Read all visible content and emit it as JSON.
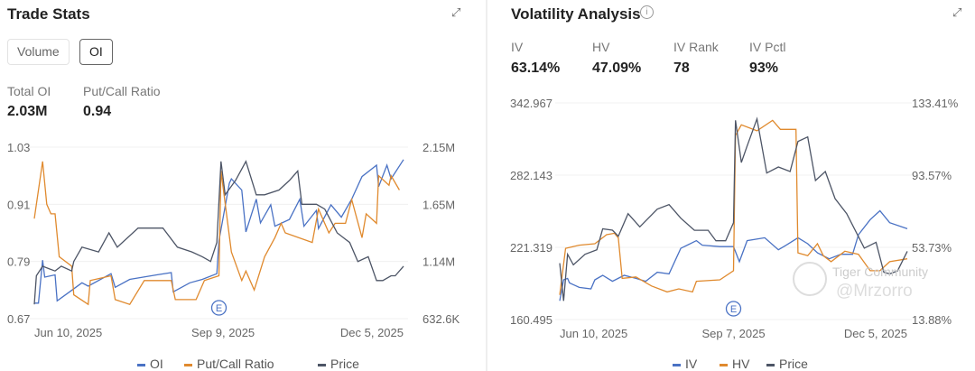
{
  "trade_stats": {
    "title": "Trade Stats",
    "tabs": [
      {
        "label": "Volume",
        "active": false
      },
      {
        "label": "OI",
        "active": true
      }
    ],
    "metrics": [
      {
        "label": "Total OI",
        "value": "2.03M"
      },
      {
        "label": "Put/Call Ratio",
        "value": "0.94"
      }
    ],
    "expand_icon": "expand-icon"
  },
  "volatility": {
    "title": "Volatility Analysis",
    "info_icon": "info-icon",
    "metrics": [
      {
        "label": "IV",
        "value": "63.14%"
      },
      {
        "label": "HV",
        "value": "47.09%"
      },
      {
        "label": "IV Rank",
        "value": "78"
      },
      {
        "label": "IV Pctl",
        "value": "93%"
      }
    ]
  },
  "watermark": {
    "brand": "Tiger Community",
    "user": "@Mrzorro"
  },
  "chart_data": [
    {
      "type": "line",
      "title": "Trade Stats",
      "x_unit": "days since Jun 10, 2025",
      "xlim": [
        0,
        178
      ],
      "x_ticks": [
        {
          "day": 0,
          "label": "Jun 10, 2025"
        },
        {
          "day": 91,
          "label": "Sep 9, 2025"
        },
        {
          "day": 178,
          "label": "Dec 5, 2025"
        }
      ],
      "left_axis": {
        "ticks": [
          "1.03",
          "0.91",
          "0.79",
          "0.67"
        ],
        "range": [
          0.67,
          1.03
        ]
      },
      "right_axis": {
        "ticks": [
          "2.15M",
          "1.65M",
          "1.14M",
          "632.6K"
        ],
        "range": [
          0.6326,
          2.15
        ]
      },
      "earnings_marker": {
        "day": 89,
        "label": "E"
      },
      "legend": "bottom",
      "colors": {
        "OI": "#4a72c4",
        "Put/Call Ratio": "#e08a2e",
        "Price": "#4d5566"
      },
      "series": [
        {
          "name": "OI",
          "axis": "right",
          "unit": "M",
          "points": [
            [
              0,
              0.77
            ],
            [
              2,
              0.77
            ],
            [
              4,
              1.15
            ],
            [
              5,
              1.0
            ],
            [
              10,
              1.02
            ],
            [
              11,
              0.79
            ],
            [
              17,
              0.87
            ],
            [
              23,
              0.95
            ],
            [
              26,
              0.92
            ],
            [
              37,
              1.03
            ],
            [
              39,
              0.91
            ],
            [
              46,
              0.98
            ],
            [
              59,
              1.02
            ],
            [
              66,
              1.04
            ],
            [
              67,
              0.87
            ],
            [
              75,
              0.95
            ],
            [
              81,
              0.98
            ],
            [
              88,
              1.03
            ],
            [
              89,
              1.32
            ],
            [
              94,
              1.83
            ],
            [
              95,
              1.87
            ],
            [
              100,
              1.77
            ],
            [
              102,
              1.4
            ],
            [
              107,
              1.69
            ],
            [
              109,
              1.48
            ],
            [
              114,
              1.64
            ],
            [
              116,
              1.45
            ],
            [
              123,
              1.51
            ],
            [
              128,
              1.69
            ],
            [
              130,
              1.45
            ],
            [
              136,
              1.59
            ],
            [
              137,
              1.43
            ],
            [
              143,
              1.64
            ],
            [
              148,
              1.53
            ],
            [
              153,
              1.69
            ],
            [
              158,
              1.89
            ],
            [
              165,
              1.99
            ],
            [
              166,
              1.8
            ],
            [
              170,
              1.99
            ],
            [
              172,
              1.87
            ],
            [
              178,
              2.04
            ]
          ]
        },
        {
          "name": "Put/Call Ratio",
          "axis": "left",
          "points": [
            [
              0,
              0.88
            ],
            [
              4,
              1.0
            ],
            [
              6,
              0.91
            ],
            [
              8,
              0.89
            ],
            [
              10,
              0.89
            ],
            [
              12,
              0.8
            ],
            [
              18,
              0.78
            ],
            [
              19,
              0.72
            ],
            [
              26,
              0.7
            ],
            [
              27,
              0.75
            ],
            [
              37,
              0.76
            ],
            [
              39,
              0.71
            ],
            [
              46,
              0.7
            ],
            [
              53,
              0.75
            ],
            [
              66,
              0.75
            ],
            [
              68,
              0.71
            ],
            [
              78,
              0.71
            ],
            [
              82,
              0.75
            ],
            [
              89,
              0.76
            ],
            [
              90,
              0.98
            ],
            [
              95,
              0.81
            ],
            [
              100,
              0.75
            ],
            [
              102,
              0.77
            ],
            [
              106,
              0.73
            ],
            [
              111,
              0.8
            ],
            [
              116,
              0.84
            ],
            [
              119,
              0.87
            ],
            [
              121,
              0.85
            ],
            [
              134,
              0.83
            ],
            [
              137,
              0.9
            ],
            [
              142,
              0.85
            ],
            [
              145,
              0.87
            ],
            [
              150,
              0.87
            ],
            [
              153,
              0.92
            ],
            [
              158,
              0.84
            ],
            [
              160,
              0.89
            ],
            [
              165,
              0.87
            ],
            [
              166,
              0.97
            ],
            [
              171,
              0.95
            ],
            [
              172,
              0.97
            ],
            [
              176,
              0.94
            ]
          ]
        },
        {
          "name": "Price",
          "axis": "none",
          "points": [
            [
              0,
              0.7
            ],
            [
              1,
              0.76
            ],
            [
              4,
              0.78
            ],
            [
              7,
              0.775
            ],
            [
              10,
              0.77
            ],
            [
              13,
              0.78
            ],
            [
              18,
              0.77
            ],
            [
              19,
              0.79
            ],
            [
              23,
              0.82
            ],
            [
              31,
              0.81
            ],
            [
              36,
              0.85
            ],
            [
              40,
              0.82
            ],
            [
              50,
              0.86
            ],
            [
              55,
              0.86
            ],
            [
              62,
              0.86
            ],
            [
              69,
              0.82
            ],
            [
              76,
              0.81
            ],
            [
              81,
              0.8
            ],
            [
              85,
              0.79
            ],
            [
              88,
              0.83
            ],
            [
              90,
              1.0
            ],
            [
              92,
              0.93
            ],
            [
              97,
              0.96
            ],
            [
              102,
              1.0
            ],
            [
              107,
              0.93
            ],
            [
              111,
              0.93
            ],
            [
              118,
              0.94
            ],
            [
              123,
              0.96
            ],
            [
              127,
              0.98
            ],
            [
              129,
              0.91
            ],
            [
              136,
              0.91
            ],
            [
              140,
              0.9
            ],
            [
              146,
              0.85
            ],
            [
              152,
              0.83
            ],
            [
              156,
              0.79
            ],
            [
              161,
              0.8
            ],
            [
              165,
              0.75
            ],
            [
              168,
              0.75
            ],
            [
              172,
              0.76
            ],
            [
              174,
              0.76
            ],
            [
              178,
              0.78
            ]
          ]
        }
      ]
    },
    {
      "type": "line",
      "title": "Volatility Analysis",
      "x_unit": "days since Jun 10, 2025",
      "xlim": [
        0,
        178
      ],
      "x_ticks": [
        {
          "day": 0,
          "label": "Jun 10, 2025"
        },
        {
          "day": 89,
          "label": "Sep 7, 2025"
        },
        {
          "day": 178,
          "label": "Dec 5, 2025"
        }
      ],
      "left_axis": {
        "ticks": [
          "342.967",
          "282.143",
          "221.319",
          "160.495"
        ],
        "range": [
          160.495,
          342.967
        ]
      },
      "right_axis": {
        "ticks": [
          "133.41%",
          "93.57%",
          "53.73%",
          "13.88%"
        ],
        "range": [
          13.88,
          133.41
        ]
      },
      "earnings_marker": {
        "day": 89,
        "label": "E"
      },
      "legend": "bottom",
      "colors": {
        "IV": "#4a72c4",
        "HV": "#e08a2e",
        "Price": "#4d5566"
      },
      "series": [
        {
          "name": "IV",
          "axis": "right",
          "points": [
            [
              0,
              24.2
            ],
            [
              2,
              35.8
            ],
            [
              4,
              36.6
            ],
            [
              5,
              34.1
            ],
            [
              10,
              31.6
            ],
            [
              16,
              30.8
            ],
            [
              18,
              35.8
            ],
            [
              22,
              38.3
            ],
            [
              27,
              35.0
            ],
            [
              33,
              38.3
            ],
            [
              39,
              36.6
            ],
            [
              44,
              35.0
            ],
            [
              50,
              40.0
            ],
            [
              56,
              39.1
            ],
            [
              62,
              53.2
            ],
            [
              70,
              57.4
            ],
            [
              73,
              54.9
            ],
            [
              82,
              54.1
            ],
            [
              89,
              54.1
            ],
            [
              92,
              45.8
            ],
            [
              96,
              57.4
            ],
            [
              105,
              59.0
            ],
            [
              112,
              52.4
            ],
            [
              116,
              54.9
            ],
            [
              122,
              59.0
            ],
            [
              127,
              55.7
            ],
            [
              132,
              50.7
            ],
            [
              138,
              47.4
            ],
            [
              144,
              49.9
            ],
            [
              150,
              49.9
            ],
            [
              153,
              60.7
            ],
            [
              159,
              69.0
            ],
            [
              164,
              73.9
            ],
            [
              169,
              67.3
            ],
            [
              178,
              64.0
            ]
          ]
        },
        {
          "name": "HV",
          "axis": "right",
          "points": [
            [
              0,
              27.5
            ],
            [
              3,
              53.2
            ],
            [
              10,
              54.9
            ],
            [
              18,
              55.7
            ],
            [
              24,
              60.7
            ],
            [
              28,
              61.5
            ],
            [
              30,
              59.0
            ],
            [
              32,
              36.6
            ],
            [
              39,
              37.4
            ],
            [
              47,
              32.4
            ],
            [
              55,
              29.1
            ],
            [
              61,
              30.8
            ],
            [
              68,
              29.1
            ],
            [
              70,
              35.0
            ],
            [
              82,
              35.8
            ],
            [
              89,
              40.8
            ],
            [
              90,
              115.5
            ],
            [
              93,
              121.3
            ],
            [
              101,
              118.0
            ],
            [
              109,
              123.8
            ],
            [
              113,
              118.8
            ],
            [
              121,
              118.8
            ],
            [
              122,
              50.7
            ],
            [
              127,
              49.1
            ],
            [
              132,
              55.7
            ],
            [
              135,
              49.1
            ],
            [
              139,
              45.8
            ],
            [
              146,
              51.6
            ],
            [
              153,
              49.9
            ],
            [
              159,
              40.8
            ],
            [
              164,
              40.8
            ],
            [
              169,
              45.8
            ],
            [
              178,
              47.4
            ]
          ]
        },
        {
          "name": "Price",
          "axis": "left",
          "points": [
            [
              0,
              207.9
            ],
            [
              2,
              176.2
            ],
            [
              4,
              215.5
            ],
            [
              7,
              206.6
            ],
            [
              13,
              215.5
            ],
            [
              19,
              219.3
            ],
            [
              22,
              236.9
            ],
            [
              27,
              235.8
            ],
            [
              30,
              230.7
            ],
            [
              35,
              249.7
            ],
            [
              41,
              238.6
            ],
            [
              50,
              253.5
            ],
            [
              56,
              257.3
            ],
            [
              62,
              245.9
            ],
            [
              69,
              235.7
            ],
            [
              76,
              235.7
            ],
            [
              80,
              226.9
            ],
            [
              85,
              226.9
            ],
            [
              89,
              242.1
            ],
            [
              90,
              328.3
            ],
            [
              93,
              292.8
            ],
            [
              96,
              306.7
            ],
            [
              101,
              329.5
            ],
            [
              106,
              283.9
            ],
            [
              112,
              289.0
            ],
            [
              118,
              285.2
            ],
            [
              122,
              310.5
            ],
            [
              127,
              314.3
            ],
            [
              131,
              277.6
            ],
            [
              136,
              285.2
            ],
            [
              141,
              262.4
            ],
            [
              147,
              249.7
            ],
            [
              156,
              220.6
            ],
            [
              162,
              225.6
            ],
            [
              166,
              200.3
            ],
            [
              169,
              199.0
            ],
            [
              173,
              201.5
            ],
            [
              178,
              218.0
            ]
          ]
        }
      ]
    }
  ]
}
